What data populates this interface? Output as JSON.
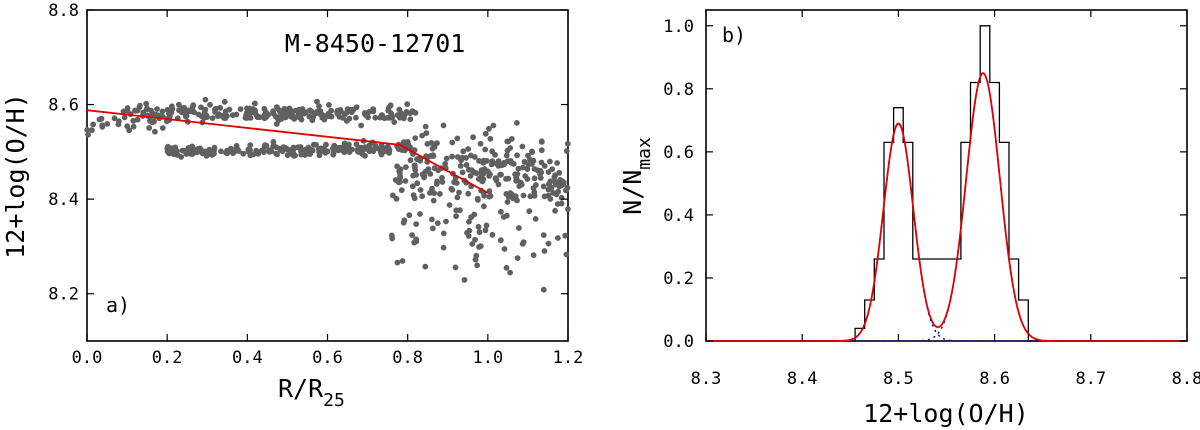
{
  "chart_data": [
    {
      "type": "scatter",
      "panel_label": "a)",
      "title": "M-8450-12701",
      "xlabel": "R/R",
      "xlabel_sub": "25",
      "ylabel": "12+log(O/H)",
      "xlim": [
        0.0,
        1.2
      ],
      "ylim": [
        8.1,
        8.8
      ],
      "xticks": [
        "0.0",
        "0.2",
        "0.4",
        "0.6",
        "0.8",
        "1.0",
        "1.2"
      ],
      "yticks": [
        "8.2",
        "8.4",
        "8.6",
        "8.8"
      ],
      "point_color": "#606060",
      "line_color": "#e00000",
      "trend_line": {
        "x": [
          0.0,
          0.78,
          1.0
        ],
        "y": [
          8.588,
          8.515,
          8.413
        ]
      },
      "points": {
        "inner_upper_band": {
          "x": [
            0.1,
            0.8
          ],
          "y": [
            8.56,
            8.62
          ]
        },
        "inner_lower_band": {
          "x": [
            0.2,
            0.8
          ],
          "y": [
            8.48,
            8.52
          ]
        },
        "outer_scatter": {
          "x": [
            0.78,
            1.2
          ],
          "y": [
            8.18,
            8.58
          ]
        }
      }
    },
    {
      "type": "histogram",
      "panel_label": "b)",
      "xlabel": "12+log(O/H)",
      "ylabel": "N/N",
      "ylabel_sub": "max",
      "xlim": [
        8.3,
        8.8
      ],
      "ylim": [
        0.0,
        1.05
      ],
      "xticks": [
        "8.3",
        "8.4",
        "8.5",
        "8.6",
        "8.7",
        "8.8"
      ],
      "yticks": [
        "0.0",
        "0.2",
        "0.4",
        "0.6",
        "0.8",
        "1.0"
      ],
      "bin_edges": [
        8.455,
        8.465,
        8.475,
        8.485,
        8.495,
        8.505,
        8.515,
        8.525,
        8.535,
        8.545,
        8.555,
        8.565,
        8.575,
        8.585,
        8.595,
        8.605,
        8.615,
        8.625,
        8.635
      ],
      "histogram": [
        0.04,
        0.13,
        0.26,
        0.63,
        0.74,
        0.63,
        0.26,
        0.26,
        0.26,
        0.26,
        0.26,
        0.63,
        0.82,
        1.0,
        0.82,
        0.63,
        0.26,
        0.13
      ],
      "fit_total_color": "#e00000",
      "fit_components_color": "#1010e0",
      "gaussian_components": [
        {
          "name": "component 1",
          "amplitude": 0.69,
          "mean": 8.5,
          "sigma": 0.0155
        },
        {
          "name": "component 2",
          "amplitude": 0.85,
          "mean": 8.588,
          "sigma": 0.0175
        }
      ]
    }
  ]
}
